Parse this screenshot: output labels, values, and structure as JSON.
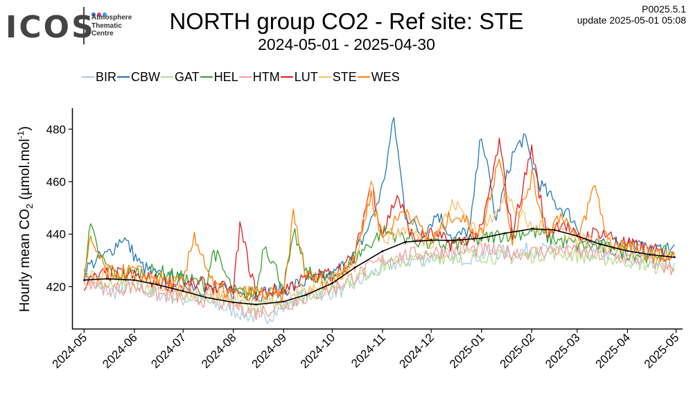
{
  "logo": {
    "wordmark": "ICOS",
    "lines": [
      "Atmosphere",
      "Thematic",
      "Centre"
    ],
    "dot_colors": [
      "#3a6fc4",
      "#e0408a",
      "#3aa0d8"
    ]
  },
  "header": {
    "title": "NORTH group CO2 - Ref site: STE",
    "subtitle": "2024-05-01 - 2025-04-30",
    "version": "P0025.5.1",
    "update": "update  2025-05-01 05:08"
  },
  "chart_data": {
    "type": "line",
    "title": "NORTH group CO2 - Ref site: STE",
    "subtitle": "2024-05-01 - 2025-04-30",
    "ylabel_parts": [
      "Hourly mean  CO",
      "2",
      " (µmol.mol",
      "-1",
      ")"
    ],
    "ylim": [
      404,
      488
    ],
    "yticks": [
      420,
      440,
      460,
      480
    ],
    "xlim": [
      "2024-04-24",
      "2025-05-05"
    ],
    "xticks": [
      "2024-05",
      "2024-06",
      "2024-07",
      "2024-08",
      "2024-09",
      "2024-10",
      "2024-11",
      "2024-12",
      "2025-01",
      "2025-02",
      "2025-03",
      "2025-04",
      "2025-05"
    ],
    "xtick_dates": [
      "2024-05-01",
      "2024-06-01",
      "2024-07-01",
      "2024-08-01",
      "2024-09-01",
      "2024-10-01",
      "2024-11-01",
      "2024-12-01",
      "2025-01-01",
      "2025-02-01",
      "2025-03-01",
      "2025-04-01",
      "2025-05-01"
    ],
    "grid": false,
    "legend_position": "top-left",
    "series": [
      {
        "name": "BIR",
        "color": "#a6cee3",
        "x": [
          "2024-05-01",
          "2024-05-10",
          "2024-05-20",
          "2024-06-01",
          "2024-06-10",
          "2024-06-20",
          "2024-07-01",
          "2024-07-10",
          "2024-07-20",
          "2024-08-01",
          "2024-08-10",
          "2024-08-20",
          "2024-09-01",
          "2024-09-10",
          "2024-09-20",
          "2024-10-01",
          "2024-10-10",
          "2024-10-20",
          "2024-11-01",
          "2024-11-10",
          "2024-11-20",
          "2024-12-01",
          "2024-12-10",
          "2024-12-20",
          "2025-01-01",
          "2025-01-10",
          "2025-01-20",
          "2025-02-01",
          "2025-02-10",
          "2025-02-20",
          "2025-03-01",
          "2025-03-10",
          "2025-03-20",
          "2025-04-01",
          "2025-04-10",
          "2025-04-20",
          "2025-04-30"
        ],
        "y": [
          424,
          419,
          418,
          421,
          418,
          417,
          415,
          416,
          413,
          411,
          409,
          408,
          412,
          416,
          417,
          418,
          419,
          423,
          427,
          429,
          430,
          431,
          432,
          431,
          432,
          433,
          433,
          434,
          434,
          435,
          433,
          432,
          432,
          430,
          430,
          430,
          429
        ]
      },
      {
        "name": "CBW",
        "color": "#1f78b4",
        "x": [
          "2024-05-01",
          "2024-05-08",
          "2024-05-15",
          "2024-05-25",
          "2024-06-05",
          "2024-06-15",
          "2024-07-01",
          "2024-07-15",
          "2024-08-01",
          "2024-08-15",
          "2024-09-01",
          "2024-09-15",
          "2024-10-01",
          "2024-10-15",
          "2024-10-25",
          "2024-11-01",
          "2024-11-08",
          "2024-11-15",
          "2024-11-25",
          "2024-12-05",
          "2024-12-15",
          "2024-12-25",
          "2025-01-01",
          "2025-01-10",
          "2025-01-20",
          "2025-01-27",
          "2025-02-05",
          "2025-02-15",
          "2025-02-25",
          "2025-03-05",
          "2025-03-15",
          "2025-03-25",
          "2025-04-05",
          "2025-04-15",
          "2025-04-30"
        ],
        "y": [
          426,
          430,
          432,
          439,
          428,
          424,
          422,
          419,
          418,
          417,
          419,
          422,
          424,
          432,
          445,
          458,
          484,
          448,
          440,
          448,
          438,
          442,
          479,
          445,
          470,
          477,
          460,
          452,
          447,
          438,
          435,
          437,
          436,
          433,
          436
        ]
      },
      {
        "name": "GAT",
        "color": "#b2df8a",
        "x": [
          "2024-05-01",
          "2024-05-15",
          "2024-06-01",
          "2024-06-15",
          "2024-07-01",
          "2024-07-15",
          "2024-08-01",
          "2024-08-15",
          "2024-09-01",
          "2024-09-15",
          "2024-10-01",
          "2024-10-15",
          "2024-11-01",
          "2024-11-15",
          "2024-12-01",
          "2024-12-15",
          "2025-01-01",
          "2025-01-15",
          "2025-02-01",
          "2025-02-15",
          "2025-03-01",
          "2025-03-15",
          "2025-04-01",
          "2025-04-15",
          "2025-04-30"
        ],
        "y": [
          425,
          420,
          421,
          419,
          417,
          415,
          414,
          412,
          414,
          417,
          420,
          423,
          428,
          430,
          431,
          432,
          432,
          431,
          432,
          433,
          432,
          431,
          430,
          428,
          427
        ]
      },
      {
        "name": "HEL",
        "color": "#33a02c",
        "x": [
          "2024-05-01",
          "2024-05-05",
          "2024-05-10",
          "2024-05-20",
          "2024-06-01",
          "2024-06-15",
          "2024-07-01",
          "2024-07-15",
          "2024-07-20",
          "2024-08-01",
          "2024-08-15",
          "2024-08-20",
          "2024-09-01",
          "2024-09-08",
          "2024-09-15",
          "2024-10-01",
          "2024-10-15",
          "2024-11-01",
          "2024-11-15",
          "2024-12-01",
          "2024-12-15",
          "2025-01-01",
          "2025-01-15",
          "2025-02-01",
          "2025-02-15",
          "2025-03-01",
          "2025-03-15",
          "2025-04-01",
          "2025-04-15",
          "2025-04-30"
        ],
        "y": [
          425,
          443,
          432,
          424,
          425,
          426,
          423,
          421,
          434,
          418,
          417,
          437,
          420,
          440,
          425,
          423,
          431,
          441,
          439,
          436,
          436,
          438,
          440,
          441,
          438,
          436,
          435,
          433,
          432,
          433
        ]
      },
      {
        "name": "HTM",
        "color": "#fb9a99",
        "x": [
          "2024-05-01",
          "2024-05-15",
          "2024-06-01",
          "2024-06-15",
          "2024-07-01",
          "2024-07-15",
          "2024-08-01",
          "2024-08-15",
          "2024-09-01",
          "2024-09-15",
          "2024-10-01",
          "2024-10-15",
          "2024-11-01",
          "2024-11-15",
          "2024-12-01",
          "2024-12-15",
          "2025-01-01",
          "2025-01-15",
          "2025-02-01",
          "2025-02-15",
          "2025-03-01",
          "2025-03-15",
          "2025-04-01",
          "2025-04-15",
          "2025-04-30"
        ],
        "y": [
          423,
          419,
          420,
          417,
          416,
          415,
          413,
          410,
          413,
          416,
          419,
          424,
          430,
          432,
          433,
          434,
          434,
          433,
          433,
          434,
          433,
          432,
          431,
          430,
          426
        ]
      },
      {
        "name": "LUT",
        "color": "#e31a1c",
        "x": [
          "2024-05-01",
          "2024-05-15",
          "2024-06-01",
          "2024-06-15",
          "2024-07-01",
          "2024-07-15",
          "2024-08-01",
          "2024-08-05",
          "2024-08-15",
          "2024-09-01",
          "2024-09-15",
          "2024-10-01",
          "2024-10-15",
          "2024-10-25",
          "2024-11-01",
          "2024-11-10",
          "2024-11-20",
          "2024-12-01",
          "2024-12-15",
          "2025-01-01",
          "2025-01-12",
          "2025-01-20",
          "2025-02-01",
          "2025-02-10",
          "2025-02-20",
          "2025-03-01",
          "2025-03-15",
          "2025-04-01",
          "2025-04-15",
          "2025-04-30"
        ],
        "y": [
          421,
          425,
          424,
          422,
          420,
          421,
          418,
          443,
          417,
          419,
          423,
          425,
          431,
          460,
          440,
          455,
          438,
          440,
          436,
          441,
          475,
          440,
          473,
          440,
          445,
          438,
          441,
          436,
          434,
          431
        ]
      },
      {
        "name": "STE",
        "color": "#fdbf6f",
        "x": [
          "2024-05-01",
          "2024-05-15",
          "2024-06-01",
          "2024-06-15",
          "2024-07-01",
          "2024-07-15",
          "2024-08-01",
          "2024-08-15",
          "2024-09-01",
          "2024-09-15",
          "2024-10-01",
          "2024-10-15",
          "2024-10-25",
          "2024-11-01",
          "2024-11-15",
          "2024-12-01",
          "2024-12-15",
          "2025-01-01",
          "2025-01-15",
          "2025-02-01",
          "2025-02-15",
          "2025-03-01",
          "2025-03-15",
          "2025-04-01",
          "2025-04-15",
          "2025-04-30"
        ],
        "y": [
          422,
          426,
          423,
          421,
          419,
          418,
          416,
          414,
          417,
          419,
          422,
          428,
          462,
          438,
          442,
          437,
          452,
          440,
          455,
          442,
          443,
          438,
          437,
          434,
          433,
          432
        ]
      },
      {
        "name": "WES",
        "color": "#ff7f00",
        "x": [
          "2024-05-01",
          "2024-05-05",
          "2024-05-15",
          "2024-06-01",
          "2024-06-15",
          "2024-07-01",
          "2024-07-08",
          "2024-07-20",
          "2024-08-01",
          "2024-08-15",
          "2024-09-01",
          "2024-09-07",
          "2024-09-15",
          "2024-10-01",
          "2024-10-15",
          "2024-10-25",
          "2024-11-01",
          "2024-11-15",
          "2024-12-01",
          "2024-12-15",
          "2025-01-01",
          "2025-01-12",
          "2025-01-20",
          "2025-02-01",
          "2025-02-10",
          "2025-02-20",
          "2025-03-01",
          "2025-03-12",
          "2025-03-20",
          "2025-04-01",
          "2025-04-15",
          "2025-04-30"
        ],
        "y": [
          422,
          438,
          425,
          426,
          423,
          421,
          440,
          420,
          417,
          418,
          416,
          448,
          424,
          421,
          432,
          455,
          438,
          450,
          437,
          448,
          440,
          470,
          438,
          462,
          441,
          448,
          437,
          459,
          437,
          435,
          432,
          431
        ]
      },
      {
        "name": "",
        "color": "#000000",
        "role": "smoothed reference curve",
        "x": [
          "2024-05-01",
          "2024-05-15",
          "2024-06-01",
          "2024-06-15",
          "2024-07-01",
          "2024-07-15",
          "2024-08-01",
          "2024-08-15",
          "2024-09-01",
          "2024-09-15",
          "2024-10-01",
          "2024-10-15",
          "2024-11-01",
          "2024-11-15",
          "2024-12-01",
          "2024-12-15",
          "2025-01-01",
          "2025-01-15",
          "2025-02-01",
          "2025-02-15",
          "2025-03-01",
          "2025-03-15",
          "2025-04-01",
          "2025-04-15",
          "2025-04-30"
        ],
        "y": [
          422.5,
          423.0,
          422.5,
          420.8,
          418.3,
          415.9,
          414.0,
          413.2,
          414.3,
          416.9,
          421.3,
          427.3,
          433.5,
          437.0,
          437.7,
          437.6,
          438.5,
          440.3,
          442.0,
          441.6,
          439.3,
          436.2,
          433.6,
          432.2,
          431.2
        ]
      }
    ]
  }
}
